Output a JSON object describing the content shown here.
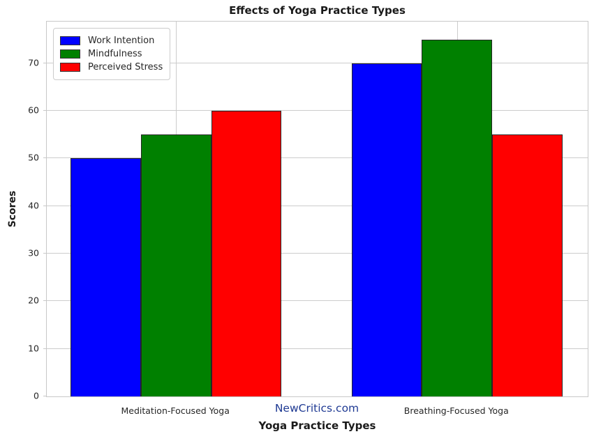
{
  "chart_data": {
    "type": "bar",
    "title": "Effects of Yoga Practice Types",
    "xlabel": "Yoga Practice Types",
    "ylabel": "Scores",
    "categories": [
      "Meditation-Focused Yoga",
      "Breathing-Focused Yoga"
    ],
    "series": [
      {
        "name": "Work Intention",
        "color": "#0000ff",
        "values": [
          50,
          70
        ]
      },
      {
        "name": "Mindfulness",
        "color": "#008000",
        "values": [
          55,
          75
        ]
      },
      {
        "name": "Perceived Stress",
        "color": "#ff0000",
        "values": [
          60,
          55
        ]
      }
    ],
    "ylim": [
      0,
      78.75
    ],
    "xlim": [
      -0.46,
      1.465
    ],
    "yticks": [
      0,
      10,
      20,
      30,
      40,
      50,
      60,
      70
    ],
    "bar_width_units": 0.25,
    "grid": true,
    "grid_color": "#cccccc",
    "legend_position": "upper-left",
    "watermark": "NewCritics.com",
    "watermark_color": "#1f3a93"
  }
}
